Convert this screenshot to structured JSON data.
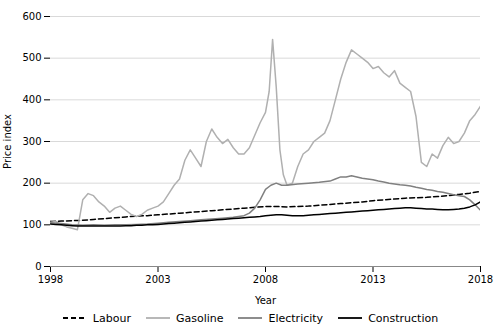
{
  "chart_data": {
    "type": "line",
    "title": "",
    "xlabel": "Year",
    "ylabel": "Price index",
    "xlim": [
      1998,
      2018
    ],
    "xticks": [
      1998,
      2003,
      2008,
      2013,
      2018
    ],
    "ylim": [
      0,
      600
    ],
    "yticks": [
      0,
      100,
      200,
      300,
      400,
      500,
      600
    ],
    "grid": true,
    "legend": "bottom",
    "series": [
      {
        "name": "Labour",
        "color": "#000000",
        "line_style": "dashed",
        "x": [
          1998.0,
          1998.5,
          1999.0,
          1999.5,
          2000.0,
          2000.5,
          2001.0,
          2001.5,
          2002.0,
          2002.5,
          2003.0,
          2003.5,
          2004.0,
          2004.5,
          2005.0,
          2005.5,
          2006.0,
          2006.5,
          2007.0,
          2007.5,
          2008.0,
          2008.5,
          2009.0,
          2009.5,
          2010.0,
          2010.5,
          2011.0,
          2011.5,
          2012.0,
          2012.5,
          2013.0,
          2013.5,
          2014.0,
          2014.5,
          2015.0,
          2015.5,
          2016.0,
          2016.5,
          2017.0,
          2017.5,
          2018.0
        ],
        "values": [
          108,
          109,
          110,
          111,
          113,
          115,
          117,
          119,
          121,
          122,
          124,
          126,
          128,
          130,
          132,
          134,
          136,
          138,
          140,
          142,
          144,
          144,
          143,
          144,
          145,
          147,
          149,
          151,
          153,
          155,
          158,
          160,
          162,
          164,
          165,
          166,
          168,
          170,
          173,
          176,
          180
        ]
      },
      {
        "name": "Gasoline",
        "color": "#b0b0b0",
        "line_style": "solid",
        "x": [
          1998.0,
          1998.25,
          1998.5,
          1998.75,
          1999.0,
          1999.25,
          1999.5,
          1999.75,
          2000.0,
          2000.25,
          2000.5,
          2000.75,
          2001.0,
          2001.25,
          2001.5,
          2001.75,
          2002.0,
          2002.25,
          2002.5,
          2002.75,
          2003.0,
          2003.25,
          2003.5,
          2003.75,
          2004.0,
          2004.25,
          2004.5,
          2004.75,
          2005.0,
          2005.25,
          2005.5,
          2005.75,
          2006.0,
          2006.25,
          2006.5,
          2006.75,
          2007.0,
          2007.25,
          2007.5,
          2007.75,
          2008.0,
          2008.17,
          2008.33,
          2008.5,
          2008.67,
          2008.83,
          2009.0,
          2009.25,
          2009.5,
          2009.75,
          2010.0,
          2010.25,
          2010.5,
          2010.75,
          2011.0,
          2011.25,
          2011.5,
          2011.75,
          2012.0,
          2012.25,
          2012.5,
          2012.75,
          2013.0,
          2013.25,
          2013.5,
          2013.75,
          2014.0,
          2014.25,
          2014.5,
          2014.75,
          2015.0,
          2015.25,
          2015.5,
          2015.75,
          2016.0,
          2016.25,
          2016.5,
          2016.75,
          2017.0,
          2017.25,
          2017.5,
          2017.75,
          2018.0
        ],
        "values": [
          110,
          108,
          100,
          95,
          92,
          88,
          160,
          175,
          170,
          155,
          145,
          130,
          140,
          145,
          135,
          125,
          120,
          125,
          135,
          140,
          145,
          155,
          175,
          195,
          210,
          255,
          280,
          260,
          240,
          300,
          330,
          310,
          295,
          305,
          285,
          270,
          270,
          285,
          315,
          345,
          370,
          420,
          545,
          430,
          280,
          220,
          195,
          200,
          240,
          270,
          280,
          300,
          310,
          320,
          350,
          400,
          450,
          490,
          520,
          510,
          500,
          490,
          475,
          480,
          465,
          455,
          470,
          440,
          430,
          420,
          360,
          250,
          240,
          270,
          260,
          290,
          310,
          295,
          300,
          320,
          350,
          365,
          385
        ]
      },
      {
        "name": "Electricity",
        "color": "#808080",
        "line_style": "solid",
        "x": [
          1998.0,
          1998.5,
          1999.0,
          1999.5,
          2000.0,
          2000.5,
          2001.0,
          2001.5,
          2002.0,
          2002.5,
          2003.0,
          2003.5,
          2004.0,
          2004.5,
          2005.0,
          2005.5,
          2006.0,
          2006.5,
          2007.0,
          2007.25,
          2007.5,
          2007.75,
          2008.0,
          2008.25,
          2008.5,
          2008.75,
          2009.0,
          2009.5,
          2010.0,
          2010.5,
          2011.0,
          2011.25,
          2011.5,
          2011.75,
          2012.0,
          2012.25,
          2012.5,
          2012.75,
          2013.0,
          2013.25,
          2013.5,
          2013.75,
          2014.0,
          2014.25,
          2014.5,
          2014.75,
          2015.0,
          2015.25,
          2015.5,
          2015.75,
          2016.0,
          2016.25,
          2016.5,
          2016.75,
          2017.0,
          2017.25,
          2017.5,
          2017.75,
          2018.0
        ],
        "values": [
          105,
          103,
          100,
          99,
          100,
          99,
          100,
          100,
          101,
          102,
          104,
          106,
          108,
          110,
          112,
          114,
          116,
          118,
          122,
          128,
          140,
          160,
          185,
          195,
          200,
          195,
          195,
          198,
          200,
          202,
          205,
          210,
          215,
          215,
          218,
          215,
          212,
          210,
          208,
          205,
          203,
          200,
          198,
          196,
          195,
          193,
          190,
          188,
          185,
          183,
          180,
          178,
          175,
          172,
          170,
          168,
          160,
          148,
          135
        ]
      },
      {
        "name": "Construction",
        "color": "#000000",
        "line_style": "solid",
        "x": [
          1998.0,
          1998.25,
          1998.5,
          1998.75,
          1999.0,
          1999.25,
          1999.5,
          1999.75,
          2000.0,
          2000.25,
          2000.5,
          2000.75,
          2001.0,
          2001.25,
          2001.5,
          2001.75,
          2002.0,
          2002.25,
          2002.5,
          2002.75,
          2003.0,
          2003.25,
          2003.5,
          2003.75,
          2004.0,
          2004.25,
          2004.5,
          2004.75,
          2005.0,
          2005.25,
          2005.5,
          2005.75,
          2006.0,
          2006.25,
          2006.5,
          2006.75,
          2007.0,
          2007.25,
          2007.5,
          2007.75,
          2008.0,
          2008.25,
          2008.5,
          2008.75,
          2009.0,
          2009.25,
          2009.5,
          2009.75,
          2010.0,
          2010.25,
          2010.5,
          2010.75,
          2011.0,
          2011.25,
          2011.5,
          2011.75,
          2012.0,
          2012.25,
          2012.5,
          2012.75,
          2013.0,
          2013.25,
          2013.5,
          2013.75,
          2014.0,
          2014.25,
          2014.5,
          2014.75,
          2015.0,
          2015.25,
          2015.5,
          2015.75,
          2016.0,
          2016.25,
          2016.5,
          2016.75,
          2017.0,
          2017.25,
          2017.5,
          2017.75,
          2018.0
        ],
        "values": [
          102,
          101,
          100,
          99,
          98,
          97,
          97,
          97,
          97,
          97,
          97,
          97,
          97,
          97,
          98,
          98,
          99,
          99,
          100,
          100,
          101,
          102,
          103,
          104,
          105,
          106,
          107,
          108,
          109,
          110,
          111,
          112,
          113,
          114,
          115,
          116,
          117,
          118,
          119,
          120,
          122,
          123,
          124,
          124,
          123,
          122,
          122,
          122,
          123,
          124,
          125,
          126,
          127,
          128,
          129,
          130,
          131,
          132,
          133,
          134,
          135,
          136,
          137,
          138,
          139,
          140,
          141,
          141,
          140,
          139,
          138,
          138,
          137,
          136,
          136,
          137,
          138,
          140,
          143,
          148,
          155
        ]
      }
    ]
  }
}
